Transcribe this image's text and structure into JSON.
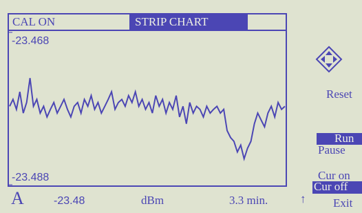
{
  "header": {
    "status": "CAL ON",
    "mode": "STRIP CHART"
  },
  "chart_data": {
    "type": "line",
    "color": "#4b46b4",
    "ylim": [
      -23.488,
      -23.468
    ],
    "yticks": [
      -23.488,
      -23.468
    ],
    "values": [
      -23.4777,
      -23.4768,
      -23.4781,
      -23.4758,
      -23.4786,
      -23.4772,
      -23.474,
      -23.4777,
      -23.4768,
      -23.4786,
      -23.4777,
      -23.4791,
      -23.4781,
      -23.4772,
      -23.4786,
      -23.4777,
      -23.4768,
      -23.4781,
      -23.4791,
      -23.4777,
      -23.4772,
      -23.4786,
      -23.4768,
      -23.4777,
      -23.4763,
      -23.4781,
      -23.4772,
      -23.4786,
      -23.4777,
      -23.4768,
      -23.4758,
      -23.4781,
      -23.4772,
      -23.4768,
      -23.4777,
      -23.4763,
      -23.4772,
      -23.4758,
      -23.4777,
      -23.4768,
      -23.4781,
      -23.4772,
      -23.4786,
      -23.4763,
      -23.4777,
      -23.4768,
      -23.4786,
      -23.4772,
      -23.4781,
      -23.4763,
      -23.4791,
      -23.4777,
      -23.48,
      -23.4772,
      -23.4786,
      -23.4777,
      -23.4781,
      -23.4791,
      -23.4777,
      -23.4786,
      -23.4781,
      -23.4777,
      -23.4786,
      -23.4781,
      -23.4809,
      -23.4818,
      -23.4823,
      -23.4837,
      -23.4828,
      -23.4846,
      -23.4832,
      -23.4823,
      -23.48,
      -23.4786,
      -23.4795,
      -23.4804,
      -23.4786,
      -23.4777,
      -23.4791,
      -23.4772,
      -23.4781,
      -23.4777
    ]
  },
  "footer": {
    "channel": "A",
    "reading": "-23.48",
    "unit": "dBm",
    "time_span": "3.3 min.",
    "arrow": "↑"
  },
  "menu": {
    "reset": "Reset",
    "run": "Run",
    "pause": "Pause",
    "cur_on": "Cur on",
    "cur_off": "Cur off",
    "exit": "Exit"
  }
}
